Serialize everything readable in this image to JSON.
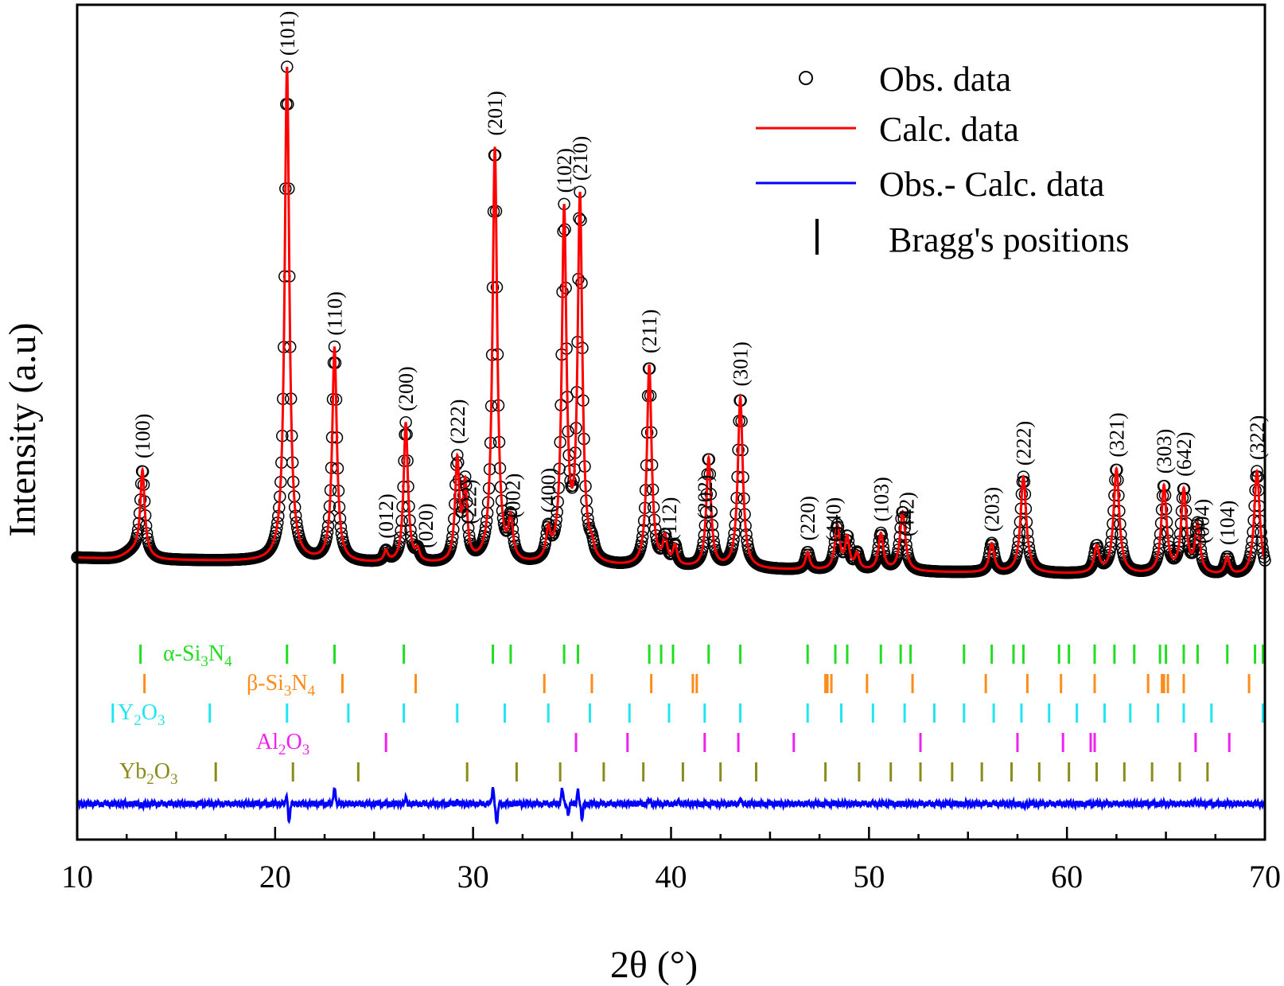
{
  "chart_data": {
    "type": "line",
    "xlabel": "2θ (°)",
    "ylabel": "Intensity (a.u)",
    "xlim": [
      10,
      70
    ],
    "xticks": [
      10,
      20,
      30,
      40,
      50,
      60,
      70
    ],
    "yticks_shown": false,
    "legend": {
      "placement": "top-right",
      "entries": [
        {
          "label": "Obs. data",
          "marker": "open-circle",
          "color": "#000000"
        },
        {
          "label": "Calc. data",
          "marker": "line",
          "color": "#ff0000"
        },
        {
          "label": "Obs.- Calc. data",
          "marker": "line",
          "color": "#0000ff"
        },
        {
          "label": "Bragg's positions",
          "marker": "vertical-bar",
          "color": "#000000"
        }
      ]
    },
    "pattern": {
      "background_level": 0.72,
      "background_slope_end": 0.5,
      "peaks": [
        {
          "x": 13.3,
          "height": 0.95,
          "width": 0.13
        },
        {
          "x": 20.6,
          "height": 5.65,
          "width": 0.14
        },
        {
          "x": 23.0,
          "height": 2.45,
          "width": 0.14
        },
        {
          "x": 25.6,
          "height": 0.12,
          "width": 0.12
        },
        {
          "x": 26.6,
          "height": 1.6,
          "width": 0.13
        },
        {
          "x": 27.2,
          "height": 0.12,
          "width": 0.12
        },
        {
          "x": 29.2,
          "height": 1.15,
          "width": 0.13
        },
        {
          "x": 29.6,
          "height": 0.85,
          "width": 0.12
        },
        {
          "x": 31.1,
          "height": 4.75,
          "width": 0.14
        },
        {
          "x": 31.9,
          "height": 0.45,
          "width": 0.13
        },
        {
          "x": 33.8,
          "height": 0.32,
          "width": 0.13
        },
        {
          "x": 34.6,
          "height": 4.0,
          "width": 0.14
        },
        {
          "x": 35.4,
          "height": 4.15,
          "width": 0.14
        },
        {
          "x": 36.0,
          "height": 0.12,
          "width": 0.13
        },
        {
          "x": 38.9,
          "height": 2.3,
          "width": 0.14
        },
        {
          "x": 39.7,
          "height": 0.3,
          "width": 0.13
        },
        {
          "x": 40.2,
          "height": 0.22,
          "width": 0.13
        },
        {
          "x": 41.9,
          "height": 1.25,
          "width": 0.14
        },
        {
          "x": 43.5,
          "height": 1.95,
          "width": 0.15
        },
        {
          "x": 46.9,
          "height": 0.2,
          "width": 0.13
        },
        {
          "x": 48.4,
          "height": 0.5,
          "width": 0.15
        },
        {
          "x": 48.9,
          "height": 0.35,
          "width": 0.13
        },
        {
          "x": 49.4,
          "height": 0.18,
          "width": 0.13
        },
        {
          "x": 50.6,
          "height": 0.42,
          "width": 0.15
        },
        {
          "x": 51.7,
          "height": 0.68,
          "width": 0.16
        },
        {
          "x": 56.2,
          "height": 0.33,
          "width": 0.15
        },
        {
          "x": 57.8,
          "height": 1.1,
          "width": 0.17
        },
        {
          "x": 61.5,
          "height": 0.3,
          "width": 0.15
        },
        {
          "x": 62.5,
          "height": 1.2,
          "width": 0.17
        },
        {
          "x": 64.9,
          "height": 1.0,
          "width": 0.16
        },
        {
          "x": 65.9,
          "height": 0.95,
          "width": 0.16
        },
        {
          "x": 66.6,
          "height": 0.55,
          "width": 0.15
        },
        {
          "x": 68.1,
          "height": 0.2,
          "width": 0.14
        },
        {
          "x": 69.6,
          "height": 1.2,
          "width": 0.17
        }
      ]
    },
    "peak_labels": [
      {
        "x": 13.3,
        "text": "(100)"
      },
      {
        "x": 20.6,
        "text": "(101)"
      },
      {
        "x": 23.0,
        "text": "(110)"
      },
      {
        "x": 25.6,
        "text": "(012)"
      },
      {
        "x": 26.6,
        "text": "(200)"
      },
      {
        "x": 27.6,
        "text": "(020)"
      },
      {
        "x": 29.2,
        "text": "(222)"
      },
      {
        "x": 29.8,
        "text": "(222)"
      },
      {
        "x": 31.1,
        "text": "(201)"
      },
      {
        "x": 32.0,
        "text": "(002)"
      },
      {
        "x": 33.8,
        "text": "(400)"
      },
      {
        "x": 34.6,
        "text": "(102)"
      },
      {
        "x": 35.4,
        "text": "(210)"
      },
      {
        "x": 38.9,
        "text": "(211)"
      },
      {
        "x": 39.9,
        "text": "(112)"
      },
      {
        "x": 41.7,
        "text": "(202)"
      },
      {
        "x": 43.5,
        "text": "(301)"
      },
      {
        "x": 46.9,
        "text": "(220)"
      },
      {
        "x": 48.2,
        "text": "(440)"
      },
      {
        "x": 50.6,
        "text": "(103)"
      },
      {
        "x": 51.9,
        "text": "(442)"
      },
      {
        "x": 56.2,
        "text": "(203)"
      },
      {
        "x": 57.8,
        "text": "(222)"
      },
      {
        "x": 62.5,
        "text": "(321)"
      },
      {
        "x": 64.9,
        "text": "(303)"
      },
      {
        "x": 65.9,
        "text": "(642)"
      },
      {
        "x": 66.8,
        "text": "(004)"
      },
      {
        "x": 68.1,
        "text": "(104)"
      },
      {
        "x": 69.6,
        "text": "(322)"
      }
    ],
    "phases": [
      {
        "name": "α-Si3N4",
        "label_main": "α-Si",
        "sub1": "3",
        "mid": "N",
        "sub2": "4",
        "color": "#22dd22",
        "positions": [
          13.2,
          20.6,
          23.0,
          26.5,
          31.0,
          31.9,
          34.6,
          35.3,
          38.9,
          39.5,
          40.1,
          41.9,
          43.5,
          46.9,
          48.3,
          48.9,
          50.6,
          51.6,
          52.1,
          54.8,
          56.2,
          57.3,
          57.8,
          59.6,
          60.1,
          61.4,
          62.4,
          63.4,
          64.7,
          65.0,
          65.9,
          66.6,
          68.1,
          69.5,
          69.9
        ]
      },
      {
        "name": "β-Si3N4",
        "label_main": "β-Si",
        "sub1": "3",
        "mid": "N",
        "sub2": "4",
        "color": "#ff8c1a",
        "positions": [
          13.4,
          23.4,
          27.1,
          33.6,
          36.0,
          39.0,
          41.1,
          41.3,
          47.8,
          47.9,
          48.1,
          49.9,
          52.2,
          55.9,
          58.0,
          59.7,
          61.4,
          64.1,
          64.8,
          64.9,
          65.1,
          65.9,
          69.2
        ]
      },
      {
        "name": "Y2O3",
        "label_main": "Y",
        "sub1": "2",
        "mid": "O",
        "sub2": "3",
        "color": "#22e5f0",
        "positions": [
          11.8,
          16.7,
          20.6,
          23.7,
          26.5,
          29.2,
          31.6,
          33.8,
          35.9,
          37.9,
          39.9,
          41.7,
          43.5,
          46.9,
          48.6,
          50.2,
          51.8,
          53.3,
          54.8,
          56.3,
          57.7,
          59.1,
          60.5,
          61.9,
          63.2,
          64.6,
          65.9,
          67.3,
          69.9
        ]
      },
      {
        "name": "Al2O3",
        "label_main": "Al",
        "sub1": "2",
        "mid": "O",
        "sub2": "3",
        "color": "#ee22ee",
        "positions": [
          25.6,
          35.2,
          37.8,
          41.7,
          43.4,
          46.2,
          52.6,
          57.5,
          59.8,
          61.2,
          61.4,
          66.5,
          68.2
        ]
      },
      {
        "name": "Yb2O3",
        "label_main": "Yb",
        "sub1": "2",
        "mid": "O",
        "sub2": "3",
        "color": "#8b8b1a",
        "positions": [
          17.0,
          20.9,
          24.2,
          29.7,
          32.2,
          34.4,
          36.6,
          38.6,
          40.6,
          42.5,
          44.3,
          47.8,
          49.5,
          51.1,
          52.6,
          54.2,
          55.7,
          57.2,
          58.6,
          60.1,
          61.5,
          62.9,
          64.3,
          65.7,
          67.1
        ]
      }
    ],
    "difference_features": [
      {
        "x": 13.3,
        "amp": -0.08
      },
      {
        "x": 20.6,
        "amp": 0.25
      },
      {
        "x": 20.7,
        "amp": -0.55
      },
      {
        "x": 23.0,
        "amp": 0.5
      },
      {
        "x": 26.6,
        "amp": 0.15
      },
      {
        "x": 29.2,
        "amp": 0.1
      },
      {
        "x": 31.0,
        "amp": 0.45
      },
      {
        "x": 31.2,
        "amp": -0.6
      },
      {
        "x": 34.5,
        "amp": 0.45
      },
      {
        "x": 34.8,
        "amp": -0.3
      },
      {
        "x": 35.3,
        "amp": 0.4
      },
      {
        "x": 35.5,
        "amp": -0.45
      },
      {
        "x": 38.9,
        "amp": 0.1
      },
      {
        "x": 40.4,
        "amp": 0.08
      },
      {
        "x": 43.5,
        "amp": 0.12
      },
      {
        "x": 57.8,
        "amp": -0.1
      },
      {
        "x": 66.5,
        "amp": 0.1
      }
    ]
  }
}
